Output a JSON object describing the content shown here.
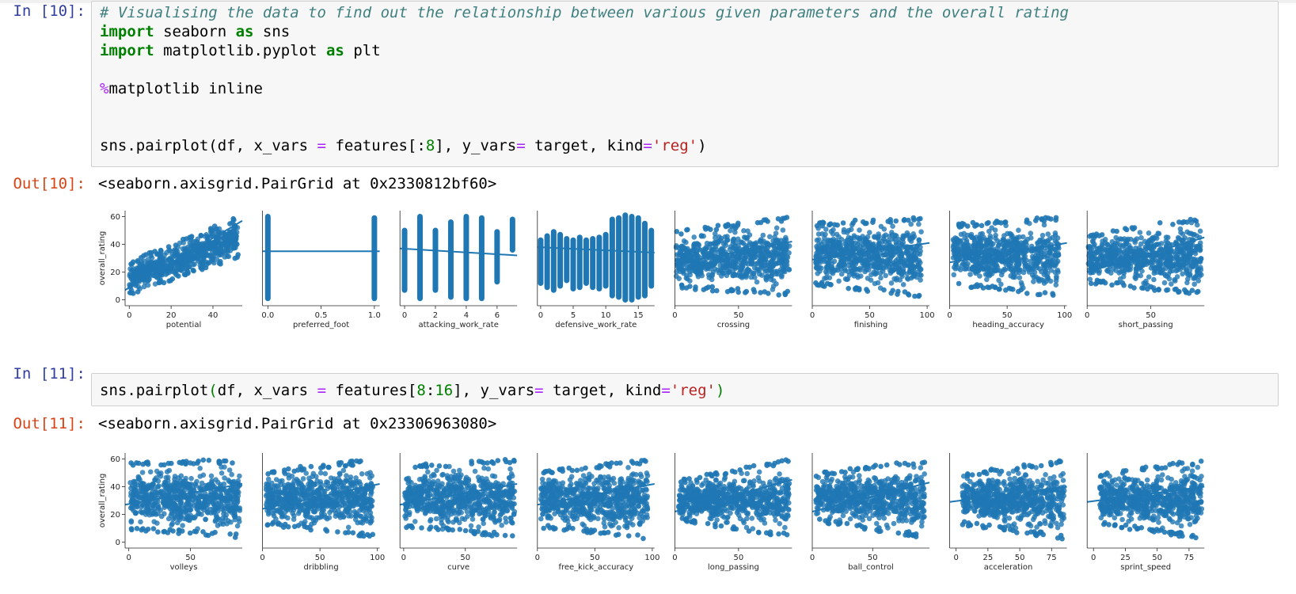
{
  "cells": [
    {
      "in_prompt": "In [10]:",
      "code": [
        "# Visualising the data to find out the relationship between various given parameters and the overall rating",
        "import seaborn as sns",
        "import matplotlib.pyplot as plt",
        "",
        "%matplotlib inline",
        "",
        "",
        "sns.pairplot(df, x_vars = features[:8], y_vars= target, kind='reg')"
      ],
      "out_prompt": "Out[10]:",
      "output_text": "<seaborn.axisgrid.PairGrid at 0x2330812bf60>"
    },
    {
      "in_prompt": "In [11]:",
      "code": [
        "sns.pairplot(df, x_vars = features[8:16], y_vars= target, kind='reg')"
      ],
      "out_prompt": "Out[11]:",
      "output_text": "<seaborn.axisgrid.PairGrid at 0x23306963080>"
    }
  ],
  "colors": {
    "scatter": "#1f77b4",
    "in_prompt": "#303f9f",
    "out_prompt": "#d84315",
    "cell_background": "#f7f7f7"
  },
  "chart_data": [
    {
      "type": "scatter",
      "ylabel": "overall_rating",
      "y_ticks": [
        0,
        20,
        40,
        60
      ],
      "ylim": [
        -2,
        62
      ],
      "panels": [
        {
          "xlabel": "potential",
          "xlim": [
            -2,
            54
          ],
          "x_ticks": [
            0,
            20,
            40
          ],
          "x_tick_labels": [
            "0",
            "20",
            "40"
          ],
          "shape": "blob",
          "x_range": [
            0,
            52
          ],
          "y_low": [
            2,
            30
          ],
          "y_high": [
            28,
            60
          ],
          "reg": [
            [
              -2,
              7
            ],
            [
              54,
              57
            ]
          ]
        },
        {
          "xlabel": "preferred_foot",
          "xlim": [
            -0.05,
            1.05
          ],
          "x_ticks": [
            0,
            0.5,
            1
          ],
          "x_tick_labels": [
            "0.0",
            "0.5",
            "1.0"
          ],
          "shape": "strips",
          "strips": [
            [
              0,
              1,
              60
            ],
            [
              1,
              1,
              59
            ]
          ],
          "reg": [
            [
              -0.05,
              35
            ],
            [
              1.05,
              35
            ]
          ]
        },
        {
          "xlabel": "attacking_work_rate",
          "xlim": [
            -0.3,
            7.3
          ],
          "x_ticks": [
            0,
            2,
            4,
            6
          ],
          "x_tick_labels": [
            "0",
            "2",
            "4",
            "6"
          ],
          "shape": "strips",
          "strips": [
            [
              0,
              7,
              50
            ],
            [
              1,
              1,
              60
            ],
            [
              2,
              7,
              50
            ],
            [
              3,
              2,
              56
            ],
            [
              4,
              1,
              60
            ],
            [
              5,
              1,
              59
            ],
            [
              6,
              13,
              49
            ],
            [
              7,
              36,
              58
            ]
          ],
          "reg": [
            [
              -0.3,
              37
            ],
            [
              7.3,
              32
            ]
          ]
        },
        {
          "xlabel": "defensive_work_rate",
          "xlim": [
            -0.5,
            17.5
          ],
          "x_ticks": [
            0,
            5,
            10,
            15
          ],
          "x_tick_labels": [
            "0",
            "5",
            "10",
            "15"
          ],
          "shape": "strips",
          "strips": [
            [
              0,
              12,
              43
            ],
            [
              1,
              9,
              46
            ],
            [
              2,
              7,
              49
            ],
            [
              3,
              10,
              47
            ],
            [
              4,
              14,
              44
            ],
            [
              5,
              8,
              43
            ],
            [
              6,
              9,
              45
            ],
            [
              7,
              12,
              43
            ],
            [
              8,
              9,
              44
            ],
            [
              9,
              8,
              45
            ],
            [
              10,
              10,
              47
            ],
            [
              11,
              3,
              58
            ],
            [
              12,
              2,
              59
            ],
            [
              13,
              0,
              61
            ],
            [
              14,
              0,
              60
            ],
            [
              15,
              2,
              59
            ],
            [
              16,
              3,
              55
            ],
            [
              17,
              10,
              50
            ]
          ],
          "reg": [
            [
              -0.5,
              38
            ],
            [
              17.5,
              34
            ]
          ]
        },
        {
          "xlabel": "crossing",
          "xlim": [
            0,
            92
          ],
          "x_ticks": [
            0,
            50
          ],
          "x_tick_labels": [
            "0",
            "50"
          ],
          "shape": "blob",
          "x_range": [
            1,
            90
          ],
          "y_low": [
            8,
            3
          ],
          "y_high": [
            50,
            60
          ],
          "reg": [
            [
              0,
              26
            ],
            [
              92,
              42
            ]
          ]
        },
        {
          "xlabel": "finishing",
          "xlim": [
            0,
            102
          ],
          "x_ticks": [
            0,
            50,
            100
          ],
          "x_tick_labels": [
            "0",
            "50",
            "100"
          ],
          "shape": "blob",
          "x_range": [
            3,
            95
          ],
          "y_low": [
            10,
            2
          ],
          "y_high": [
            56,
            60
          ],
          "reg": [
            [
              0,
              29
            ],
            [
              102,
              41
            ]
          ]
        },
        {
          "xlabel": "heading_accuracy",
          "xlim": [
            0,
            102
          ],
          "x_ticks": [
            0,
            50,
            100
          ],
          "x_tick_labels": [
            "0",
            "50",
            "100"
          ],
          "shape": "blob",
          "x_range": [
            3,
            95
          ],
          "y_low": [
            10,
            2
          ],
          "y_high": [
            55,
            60
          ],
          "reg": [
            [
              0,
              27
            ],
            [
              102,
              41
            ]
          ]
        },
        {
          "xlabel": "short_passing",
          "xlim": [
            0,
            92
          ],
          "x_ticks": [
            0,
            50
          ],
          "x_tick_labels": [
            "0",
            "50"
          ],
          "shape": "blob",
          "x_range": [
            1,
            90
          ],
          "y_low": [
            12,
            3
          ],
          "y_high": [
            48,
            60
          ],
          "reg": [
            [
              0,
              20
            ],
            [
              92,
              45
            ]
          ]
        }
      ]
    },
    {
      "type": "scatter",
      "ylabel": "overall_rating",
      "y_ticks": [
        0,
        20,
        40,
        60
      ],
      "ylim": [
        -2,
        62
      ],
      "panels": [
        {
          "xlabel": "volleys",
          "xlim": [
            -3,
            92
          ],
          "x_ticks": [
            0,
            50
          ],
          "x_tick_labels": [
            "0",
            "50"
          ],
          "shape": "blob",
          "x_range": [
            1,
            90
          ],
          "y_low": [
            8,
            3
          ],
          "y_high": [
            58,
            60
          ],
          "reg": [
            [
              -3,
              27
            ],
            [
              92,
              42
            ]
          ]
        },
        {
          "xlabel": "dribbling",
          "xlim": [
            0,
            102
          ],
          "x_ticks": [
            0,
            50,
            100
          ],
          "x_tick_labels": [
            "0",
            "50",
            "100"
          ],
          "shape": "blob",
          "x_range": [
            3,
            96
          ],
          "y_low": [
            12,
            3
          ],
          "y_high": [
            52,
            60
          ],
          "reg": [
            [
              0,
              24
            ],
            [
              102,
              42
            ]
          ]
        },
        {
          "xlabel": "curve",
          "xlim": [
            -3,
            92
          ],
          "x_ticks": [
            0,
            50
          ],
          "x_tick_labels": [
            "0",
            "50"
          ],
          "shape": "blob",
          "x_range": [
            1,
            90
          ],
          "y_low": [
            10,
            3
          ],
          "y_high": [
            56,
            60
          ],
          "reg": [
            [
              -3,
              27
            ],
            [
              92,
              42
            ]
          ]
        },
        {
          "xlabel": "free_kick_accuracy",
          "xlim": [
            0,
            102
          ],
          "x_ticks": [
            0,
            50,
            100
          ],
          "x_tick_labels": [
            "0",
            "50",
            "100"
          ],
          "shape": "blob",
          "x_range": [
            3,
            96
          ],
          "y_low": [
            10,
            2
          ],
          "y_high": [
            52,
            60
          ],
          "reg": [
            [
              0,
              27
            ],
            [
              102,
              42
            ]
          ]
        },
        {
          "xlabel": "long_passing",
          "xlim": [
            0,
            92
          ],
          "x_ticks": [
            0,
            50
          ],
          "x_tick_labels": [
            "0",
            "50"
          ],
          "shape": "blob",
          "x_range": [
            3,
            90
          ],
          "y_low": [
            15,
            3
          ],
          "y_high": [
            45,
            60
          ],
          "reg": [
            [
              0,
              22
            ],
            [
              92,
              45
            ]
          ]
        },
        {
          "xlabel": "ball_control",
          "xlim": [
            0,
            97
          ],
          "x_ticks": [
            0,
            50
          ],
          "x_tick_labels": [
            "0",
            "50"
          ],
          "shape": "blob",
          "x_range": [
            3,
            93
          ],
          "y_low": [
            14,
            3
          ],
          "y_high": [
            50,
            60
          ],
          "reg": [
            [
              0,
              22
            ],
            [
              97,
              43
            ]
          ]
        },
        {
          "xlabel": "acceleration",
          "xlim": [
            -5,
            87
          ],
          "x_ticks": [
            0,
            25,
            50,
            75
          ],
          "x_tick_labels": [
            "0",
            "25",
            "50",
            "75"
          ],
          "shape": "blob",
          "x_range": [
            5,
            85
          ],
          "y_low": [
            12,
            2
          ],
          "y_high": [
            50,
            60
          ],
          "reg": [
            [
              -5,
              29
            ],
            [
              87,
              40
            ]
          ]
        },
        {
          "xlabel": "sprint_speed",
          "xlim": [
            -5,
            87
          ],
          "x_ticks": [
            0,
            25,
            50,
            75
          ],
          "x_tick_labels": [
            "0",
            "25",
            "50",
            "75"
          ],
          "shape": "blob",
          "x_range": [
            5,
            85
          ],
          "y_low": [
            12,
            2
          ],
          "y_high": [
            50,
            60
          ],
          "reg": [
            [
              -5,
              29
            ],
            [
              87,
              40
            ]
          ]
        }
      ]
    }
  ]
}
